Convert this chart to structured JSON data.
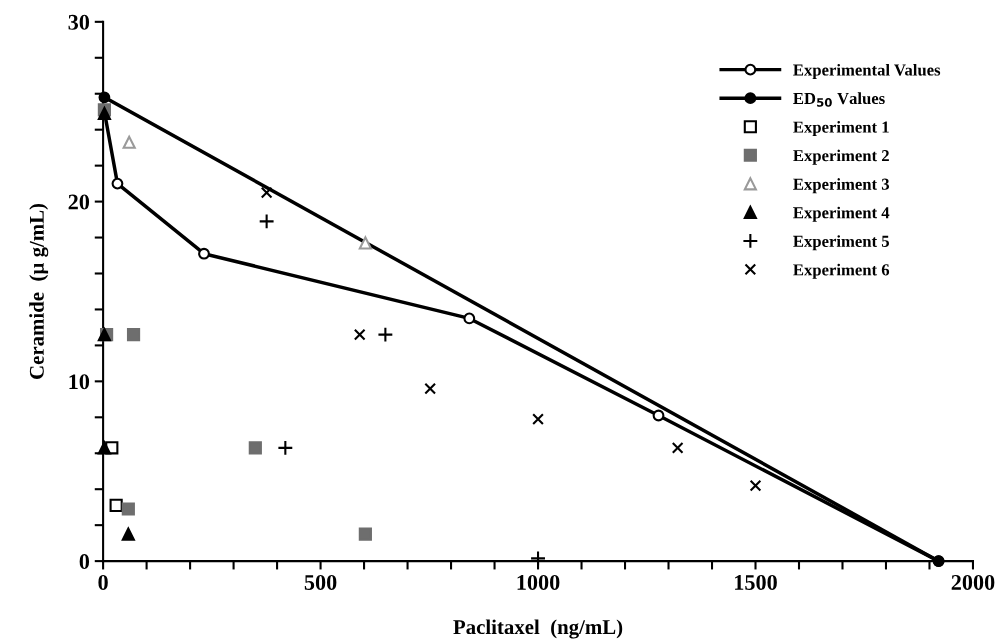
{
  "chart_data": {
    "type": "scatter",
    "xlabel": "Paclitaxel  (ng/mL)",
    "ylabel": "Ceramide  (µ g/mL)",
    "xlim": [
      0,
      2000
    ],
    "ylim": [
      0,
      30
    ],
    "xticks": [
      0,
      {
        "value": 100,
        "label": null
      },
      {
        "value": 200,
        "label": null
      },
      {
        "value": 300,
        "label": null
      },
      {
        "value": 400,
        "label": null
      },
      500,
      {
        "value": 600,
        "label": null
      },
      {
        "value": 700,
        "label": null
      },
      {
        "value": 800,
        "label": null
      },
      {
        "value": 900,
        "label": null
      },
      1000,
      {
        "value": 1100,
        "label": null
      },
      {
        "value": 1200,
        "label": null
      },
      {
        "value": 1300,
        "label": null
      },
      {
        "value": 1400,
        "label": null
      },
      1500,
      {
        "value": 1600,
        "label": null
      },
      {
        "value": 1700,
        "label": null
      },
      {
        "value": 1800,
        "label": null
      },
      {
        "value": 1900,
        "label": null
      },
      2000
    ],
    "yticks": [
      0,
      {
        "value": 2,
        "label": null
      },
      {
        "value": 4,
        "label": null
      },
      {
        "value": 6,
        "label": null
      },
      {
        "value": 8,
        "label": null
      },
      10,
      {
        "value": 12,
        "label": null
      },
      {
        "value": 14,
        "label": null
      },
      {
        "value": 16,
        "label": null
      },
      {
        "value": 18,
        "label": null
      },
      20,
      {
        "value": 22,
        "label": null
      },
      {
        "value": 24,
        "label": null
      },
      {
        "value": 26,
        "label": null
      },
      {
        "value": 28,
        "label": null
      },
      30
    ],
    "grid": false,
    "legend": "top right",
    "series": [
      {
        "name": "Experimental Values",
        "type": "line",
        "color": "#000000",
        "marker": "circle-open",
        "x": [
          3,
          33,
          232,
          842,
          1277,
          1921
        ],
        "values": [
          25.0,
          21.0,
          17.1,
          13.5,
          8.1,
          0
        ]
      },
      {
        "name": "ED$_{50}$ Values",
        "type": "line",
        "color": "#000000",
        "marker": "circle",
        "x": [
          3,
          1921
        ],
        "values": [
          25.8,
          0
        ]
      },
      {
        "name": "Experiment 1",
        "color": "#000000",
        "marker": "square-open",
        "x": [
          20,
          30
        ],
        "values": [
          6.3,
          3.1
        ]
      },
      {
        "name": "Experiment 2",
        "color": "#6e6e6e",
        "marker": "square",
        "x": [
          3,
          8,
          70,
          350,
          58,
          603
        ],
        "values": [
          25.1,
          12.6,
          12.6,
          6.3,
          2.9,
          1.5
        ]
      },
      {
        "name": "Experiment 3",
        "color": "#9a9a9a",
        "marker": "triangle-open",
        "x": [
          60,
          603
        ],
        "values": [
          23.3,
          17.7
        ]
      },
      {
        "name": "Experiment 4",
        "color": "#000000",
        "marker": "triangle",
        "x": [
          3,
          3,
          3,
          58
        ],
        "values": [
          24.9,
          12.6,
          6.3,
          1.5
        ]
      },
      {
        "name": "Experiment 5",
        "color": "#000000",
        "marker": "cross",
        "x": [
          376,
          649,
          419,
          1000
        ],
        "values": [
          18.9,
          12.6,
          6.3,
          0.15
        ]
      },
      {
        "name": "Experiment 6",
        "color": "#000000",
        "marker": "x",
        "x": [
          376,
          590,
          752,
          1000,
          1321,
          1500
        ],
        "values": [
          20.5,
          12.6,
          9.6,
          7.9,
          6.3,
          4.2
        ]
      }
    ]
  }
}
